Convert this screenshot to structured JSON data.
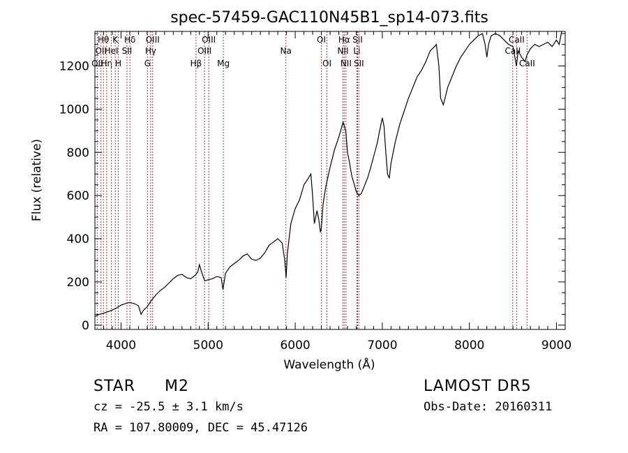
{
  "chart_data": {
    "type": "line",
    "title": "spec-57459-GAC110N45B1_sp14-073.fits",
    "xlabel": "Wavelength (Å)",
    "ylabel": "Flux (relative)",
    "xlim": [
      3700,
      9100
    ],
    "ylim": [
      -20,
      1360
    ],
    "xticks": [
      4000,
      5000,
      6000,
      7000,
      8000,
      9000
    ],
    "yticks": [
      0,
      200,
      400,
      600,
      800,
      1000,
      1200
    ],
    "grid": false,
    "series": [
      {
        "color": "#000000",
        "points": [
          [
            3700,
            40
          ],
          [
            3750,
            50
          ],
          [
            3800,
            55
          ],
          [
            3850,
            62
          ],
          [
            3900,
            70
          ],
          [
            3950,
            80
          ],
          [
            4000,
            92
          ],
          [
            4050,
            100
          ],
          [
            4100,
            105
          ],
          [
            4150,
            100
          ],
          [
            4200,
            90
          ],
          [
            4230,
            50
          ],
          [
            4260,
            70
          ],
          [
            4300,
            85
          ],
          [
            4350,
            115
          ],
          [
            4400,
            140
          ],
          [
            4450,
            160
          ],
          [
            4500,
            175
          ],
          [
            4550,
            195
          ],
          [
            4600,
            215
          ],
          [
            4650,
            230
          ],
          [
            4700,
            235
          ],
          [
            4750,
            220
          ],
          [
            4800,
            215
          ],
          [
            4850,
            230
          ],
          [
            4880,
            245
          ],
          [
            4900,
            280
          ],
          [
            4930,
            240
          ],
          [
            4960,
            205
          ],
          [
            5000,
            210
          ],
          [
            5050,
            215
          ],
          [
            5100,
            225
          ],
          [
            5150,
            220
          ],
          [
            5170,
            165
          ],
          [
            5200,
            240
          ],
          [
            5250,
            270
          ],
          [
            5300,
            285
          ],
          [
            5350,
            300
          ],
          [
            5400,
            320
          ],
          [
            5450,
            330
          ],
          [
            5500,
            305
          ],
          [
            5550,
            300
          ],
          [
            5600,
            310
          ],
          [
            5650,
            335
          ],
          [
            5700,
            370
          ],
          [
            5750,
            385
          ],
          [
            5800,
            400
          ],
          [
            5850,
            380
          ],
          [
            5880,
            300
          ],
          [
            5895,
            220
          ],
          [
            5910,
            330
          ],
          [
            5950,
            470
          ],
          [
            6000,
            540
          ],
          [
            6050,
            580
          ],
          [
            6100,
            650
          ],
          [
            6150,
            680
          ],
          [
            6180,
            700
          ],
          [
            6200,
            600
          ],
          [
            6220,
            470
          ],
          [
            6250,
            530
          ],
          [
            6270,
            490
          ],
          [
            6290,
            430
          ],
          [
            6300,
            450
          ],
          [
            6320,
            560
          ],
          [
            6350,
            640
          ],
          [
            6400,
            730
          ],
          [
            6450,
            810
          ],
          [
            6500,
            870
          ],
          [
            6550,
            940
          ],
          [
            6580,
            900
          ],
          [
            6600,
            800
          ],
          [
            6620,
            760
          ],
          [
            6650,
            690
          ],
          [
            6680,
            650
          ],
          [
            6700,
            620
          ],
          [
            6730,
            600
          ],
          [
            6760,
            610
          ],
          [
            6800,
            650
          ],
          [
            6830,
            680
          ],
          [
            6860,
            720
          ],
          [
            6900,
            780
          ],
          [
            6940,
            840
          ],
          [
            6970,
            900
          ],
          [
            7000,
            960
          ],
          [
            7020,
            920
          ],
          [
            7040,
            800
          ],
          [
            7060,
            700
          ],
          [
            7080,
            680
          ],
          [
            7100,
            750
          ],
          [
            7150,
            850
          ],
          [
            7200,
            930
          ],
          [
            7250,
            990
          ],
          [
            7300,
            1050
          ],
          [
            7350,
            1100
          ],
          [
            7400,
            1150
          ],
          [
            7450,
            1180
          ],
          [
            7500,
            1220
          ],
          [
            7550,
            1270
          ],
          [
            7600,
            1290
          ],
          [
            7620,
            1300
          ],
          [
            7650,
            1200
          ],
          [
            7670,
            1050
          ],
          [
            7700,
            1020
          ],
          [
            7720,
            1050
          ],
          [
            7750,
            1100
          ],
          [
            7800,
            1150
          ],
          [
            7850,
            1200
          ],
          [
            7900,
            1240
          ],
          [
            7950,
            1270
          ],
          [
            8000,
            1300
          ],
          [
            8050,
            1320
          ],
          [
            8100,
            1340
          ],
          [
            8150,
            1350
          ],
          [
            8180,
            1300
          ],
          [
            8200,
            1240
          ],
          [
            8220,
            1300
          ],
          [
            8250,
            1340
          ],
          [
            8300,
            1350
          ],
          [
            8350,
            1340
          ],
          [
            8400,
            1320
          ],
          [
            8450,
            1300
          ],
          [
            8500,
            1290
          ],
          [
            8540,
            1200
          ],
          [
            8560,
            1270
          ],
          [
            8600,
            1240
          ],
          [
            8640,
            1220
          ],
          [
            8660,
            1250
          ],
          [
            8700,
            1280
          ],
          [
            8750,
            1300
          ],
          [
            8800,
            1290
          ],
          [
            8850,
            1300
          ],
          [
            8900,
            1310
          ],
          [
            8950,
            1290
          ],
          [
            9000,
            1320
          ],
          [
            9030,
            1300
          ],
          [
            9060,
            1360
          ]
        ]
      }
    ],
    "lines": [
      {
        "x": 3727,
        "label": "OII",
        "row": 2
      },
      {
        "x": 3770,
        "label": "OII",
        "row": 1
      },
      {
        "x": 3798,
        "label": "Hθ",
        "row": 0
      },
      {
        "x": 3835,
        "label": "Hη",
        "row": 2
      },
      {
        "x": 3889,
        "label": "HeI",
        "row": 1
      },
      {
        "x": 3934,
        "label": "K",
        "row": 0
      },
      {
        "x": 3969,
        "label": "H",
        "row": 2
      },
      {
        "x": 4068,
        "label": "SII",
        "row": 1
      },
      {
        "x": 4102,
        "label": "Hδ",
        "row": 0
      },
      {
        "x": 4304,
        "label": "G",
        "row": 2
      },
      {
        "x": 4340,
        "label": "Hγ",
        "row": 1
      },
      {
        "x": 4363,
        "label": "OIII",
        "row": 0
      },
      {
        "x": 4861,
        "label": "Hβ",
        "row": 2
      },
      {
        "x": 4959,
        "label": "OIII",
        "row": 1
      },
      {
        "x": 5007,
        "label": "OIII",
        "row": 0
      },
      {
        "x": 5175,
        "label": "Mg",
        "row": 2
      },
      {
        "x": 5893,
        "label": "Na",
        "row": 1
      },
      {
        "x": 6300,
        "label": "OI",
        "row": 0
      },
      {
        "x": 6364,
        "label": "OI",
        "row": 2
      },
      {
        "x": 6548,
        "label": "NII",
        "row": 1
      },
      {
        "x": 6563,
        "label": "Hα",
        "row": 0
      },
      {
        "x": 6583,
        "label": "NII",
        "row": 2
      },
      {
        "x": 6708,
        "label": "Li",
        "row": 1
      },
      {
        "x": 6716,
        "label": "SII",
        "row": 0
      },
      {
        "x": 6731,
        "label": "SII",
        "row": 2
      },
      {
        "x": 8498,
        "label": "CaII",
        "row": 1
      },
      {
        "x": 8542,
        "label": "CaII",
        "row": 0
      },
      {
        "x": 8662,
        "label": "CaII",
        "row": 2
      }
    ],
    "line_color": "#b03030"
  },
  "info": {
    "object_class": "STAR",
    "subclass": "M2",
    "redshift": "cz = -25.5 ± 3.1 km/s",
    "coords": "RA = 107.80009, DEC =  45.47126",
    "survey": "LAMOST DR5",
    "obs_date": "Obs-Date: 20160311"
  }
}
